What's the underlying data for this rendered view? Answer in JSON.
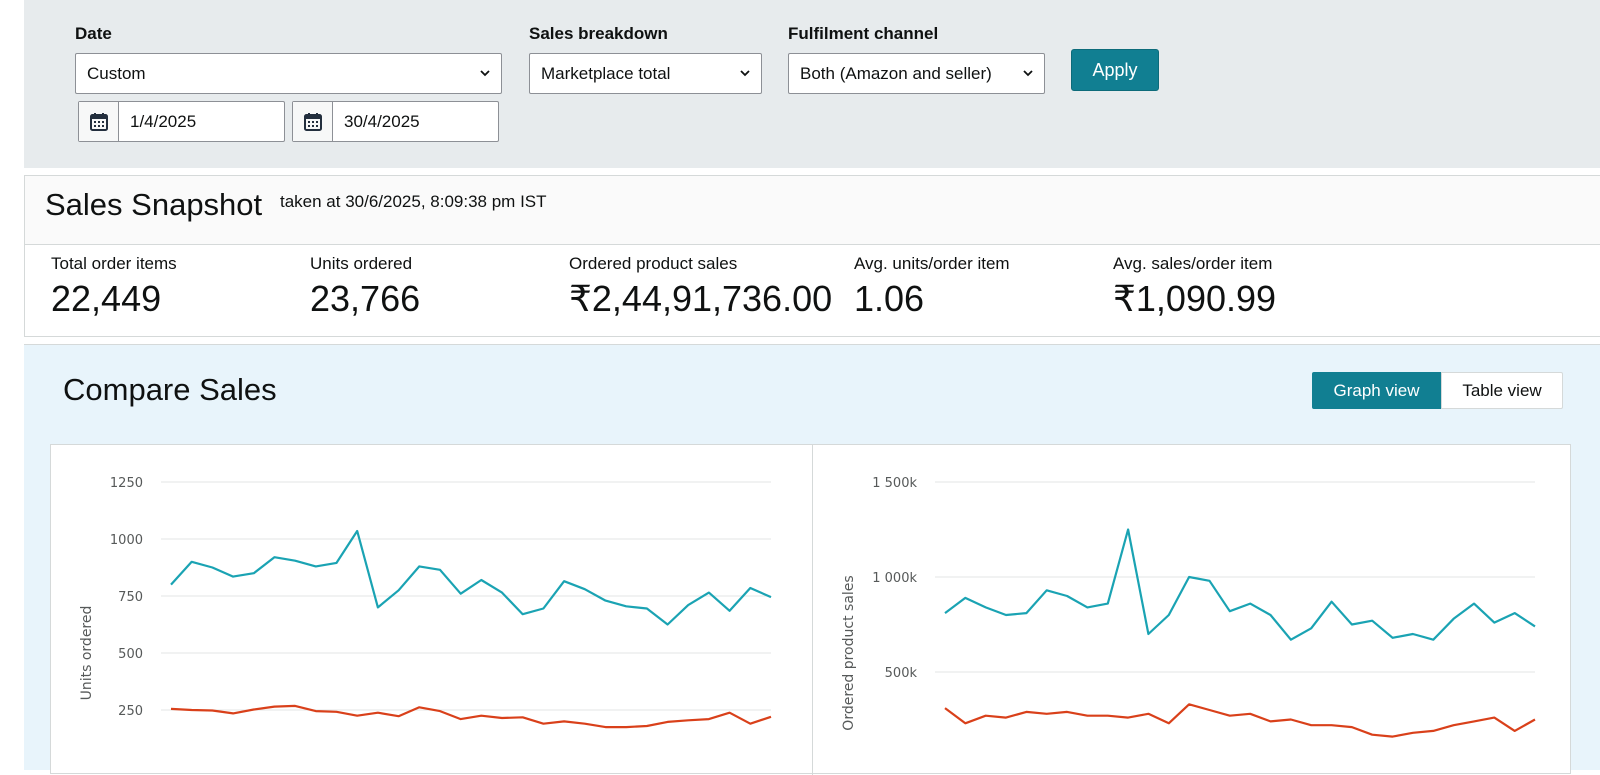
{
  "filters": {
    "date": {
      "label": "Date",
      "value": "Custom",
      "start": "1/4/2025",
      "end": "30/4/2025"
    },
    "breakdown": {
      "label": "Sales breakdown",
      "value": "Marketplace total"
    },
    "channel": {
      "label": "Fulfilment channel",
      "value": "Both (Amazon and seller)"
    },
    "apply_label": "Apply"
  },
  "snapshot": {
    "title": "Sales Snapshot",
    "taken_at": "taken at 30/6/2025, 8:09:38 pm IST",
    "metrics": [
      {
        "label": "Total order items",
        "value": "22,449"
      },
      {
        "label": "Units ordered",
        "value": "23,766"
      },
      {
        "label": "Ordered product sales",
        "value": "₹2,44,91,736.00"
      },
      {
        "label": "Avg. units/order item",
        "value": "1.06"
      },
      {
        "label": "Avg. sales/order item",
        "value": "₹1,090.99"
      }
    ]
  },
  "compare": {
    "title": "Compare Sales",
    "graph_view_label": "Graph view",
    "table_view_label": "Table view"
  },
  "colors": {
    "teal": "#1aa3b3",
    "red": "#d9401a",
    "accent": "#117f92"
  },
  "chart_data": [
    {
      "type": "line",
      "title": "",
      "xlabel": "",
      "ylabel": "Units ordered",
      "yticks": [
        "1250",
        "1000",
        "750",
        "500",
        "250"
      ],
      "ylim": [
        0,
        1250
      ],
      "series": [
        {
          "color": "#1aa3b3",
          "values": [
            800,
            900,
            875,
            835,
            850,
            920,
            905,
            880,
            895,
            1035,
            700,
            775,
            880,
            865,
            760,
            820,
            765,
            670,
            695,
            815,
            780,
            730,
            705,
            695,
            625,
            710,
            765,
            685,
            785,
            745
          ]
        },
        {
          "color": "#d9401a",
          "values": [
            255,
            250,
            248,
            235,
            252,
            265,
            268,
            245,
            242,
            225,
            238,
            223,
            262,
            245,
            210,
            225,
            215,
            218,
            190,
            200,
            190,
            175,
            175,
            180,
            198,
            205,
            210,
            238,
            190,
            220
          ]
        }
      ]
    },
    {
      "type": "line",
      "title": "",
      "xlabel": "",
      "ylabel": "Ordered product sales",
      "yticks": [
        "1 500k",
        "1 000k",
        "500k"
      ],
      "ylim": [
        0,
        1500000
      ],
      "series": [
        {
          "color": "#1aa3b3",
          "values": [
            810000,
            890000,
            840000,
            800000,
            810000,
            930000,
            900000,
            840000,
            860000,
            1250000,
            700000,
            800000,
            1000000,
            980000,
            820000,
            860000,
            800000,
            670000,
            730000,
            870000,
            750000,
            770000,
            680000,
            700000,
            670000,
            780000,
            860000,
            760000,
            810000,
            740000
          ]
        },
        {
          "color": "#d9401a",
          "values": [
            310000,
            230000,
            270000,
            260000,
            290000,
            280000,
            290000,
            270000,
            270000,
            260000,
            280000,
            230000,
            330000,
            300000,
            270000,
            280000,
            240000,
            250000,
            220000,
            220000,
            210000,
            170000,
            160000,
            180000,
            190000,
            220000,
            240000,
            260000,
            190000,
            250000
          ]
        }
      ]
    }
  ]
}
